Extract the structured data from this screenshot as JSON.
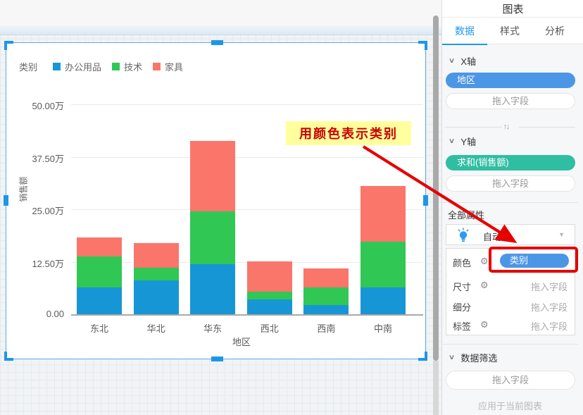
{
  "chart_data": {
    "type": "bar",
    "stacked": true,
    "categories": [
      "东北",
      "华北",
      "华东",
      "西北",
      "西南",
      "中南"
    ],
    "series": [
      {
        "name": "办公用品",
        "color": "#1796D6",
        "values": [
          6.6,
          8.2,
          12.0,
          3.7,
          2.4,
          6.6
        ]
      },
      {
        "name": "技术",
        "color": "#30C755",
        "values": [
          7.4,
          3.0,
          12.7,
          1.9,
          4.2,
          10.8
        ]
      },
      {
        "name": "家具",
        "color": "#FA766B",
        "values": [
          4.4,
          5.9,
          16.7,
          7.1,
          4.4,
          13.3
        ]
      }
    ],
    "unit": "万",
    "title": "",
    "xlabel": "地区",
    "ylabel": "销售额",
    "ylim": [
      0,
      50
    ],
    "yticks": [
      0,
      12.5,
      25,
      37.5,
      50
    ],
    "ytick_labels": [
      "0.00",
      "12.50万",
      "25.00万",
      "37.50万",
      "50.00万"
    ],
    "legend_title": "类别",
    "legend_position": "top-left",
    "grid": true
  },
  "annotation": {
    "label": "用颜色表示类别",
    "bg_color": "#FFFF9E",
    "text_color": "#CC0000",
    "arrow_color": "#E60000"
  },
  "icons": {
    "chevron_down": "∨",
    "swap_axes": "↑↓",
    "dropdown_caret": "▼",
    "gear": "⚙"
  },
  "panel": {
    "title": "图表",
    "tabs": [
      {
        "label": "数据",
        "active": true
      },
      {
        "label": "样式",
        "active": false
      },
      {
        "label": "分析",
        "active": false
      }
    ],
    "x_axis": {
      "header": "X轴",
      "pill": "地区",
      "placeholder": "拖入字段"
    },
    "y_axis": {
      "header": "Y轴",
      "pill": "求和(销售额)",
      "placeholder": "拖入字段"
    },
    "properties": {
      "header": "全部属性",
      "mode_label": "自动",
      "rows": [
        {
          "label": "颜色",
          "has_gear": true,
          "value": "类别",
          "value_is_pill": true
        },
        {
          "label": "尺寸",
          "has_gear": true,
          "value": "拖入字段",
          "value_is_pill": false
        },
        {
          "label": "细分",
          "has_gear": false,
          "value": "拖入字段",
          "value_is_pill": false
        },
        {
          "label": "标签",
          "has_gear": true,
          "value": "拖入字段",
          "value_is_pill": false
        }
      ]
    },
    "filter": {
      "header": "数据筛选",
      "placeholder": "拖入字段",
      "footer": "应用于当前图表"
    }
  },
  "colors": {
    "pill_dimension": "#4C96E6",
    "pill_measure": "#2FBEA2",
    "tab_active": "#2196F3",
    "selection_border": "#58ACEB",
    "handle": "#1E96E8"
  }
}
